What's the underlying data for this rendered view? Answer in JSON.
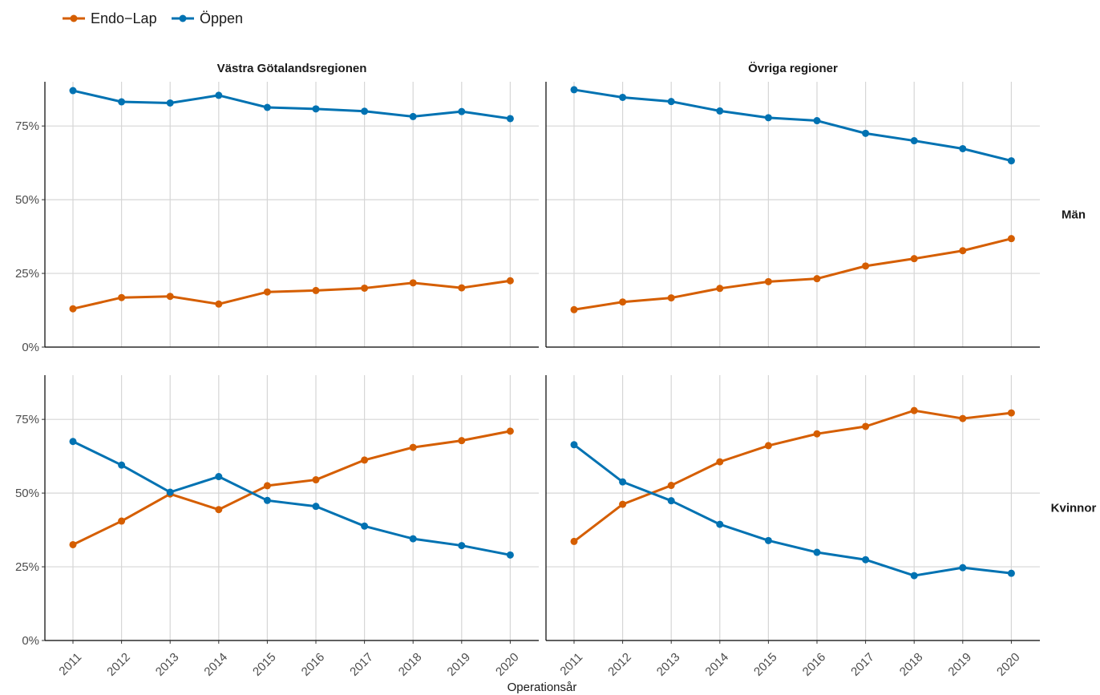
{
  "chart_data": {
    "type": "line",
    "xlabel": "Operationsår",
    "ylabel": "",
    "ylim": [
      0,
      0.9
    ],
    "yticks": [
      0,
      0.25,
      0.5,
      0.75
    ],
    "ytick_labels": [
      "0%",
      "25%",
      "50%",
      "75%"
    ],
    "x": [
      2011,
      2012,
      2013,
      2014,
      2015,
      2016,
      2017,
      2018,
      2019,
      2020
    ],
    "x_tick_labels": [
      "2011",
      "2012",
      "2013",
      "2014",
      "2015",
      "2016",
      "2017",
      "2018",
      "2019",
      "2020"
    ],
    "legend": {
      "placement": "top-left",
      "items": [
        {
          "name": "Endo−Lap",
          "color": "#D55E00"
        },
        {
          "name": "Öppen",
          "color": "#0072B2"
        }
      ]
    },
    "grid": true,
    "facet_columns": [
      "Västra Götalandsregionen",
      "Övriga regioner"
    ],
    "facet_rows": [
      "Män",
      "Kvinnor"
    ],
    "panels": [
      {
        "col": 0,
        "row": 0,
        "series": [
          {
            "name": "Endo−Lap",
            "color": "#D55E00",
            "values": [
              0.13,
              0.168,
              0.172,
              0.146,
              0.187,
              0.192,
              0.2,
              0.218,
              0.201,
              0.225
            ]
          },
          {
            "name": "Öppen",
            "color": "#0072B2",
            "values": [
              0.87,
              0.832,
              0.828,
              0.854,
              0.813,
              0.808,
              0.8,
              0.782,
              0.799,
              0.775
            ]
          }
        ]
      },
      {
        "col": 1,
        "row": 0,
        "series": [
          {
            "name": "Endo−Lap",
            "color": "#D55E00",
            "values": [
              0.127,
              0.153,
              0.167,
              0.199,
              0.222,
              0.232,
              0.275,
              0.3,
              0.327,
              0.368
            ]
          },
          {
            "name": "Öppen",
            "color": "#0072B2",
            "values": [
              0.873,
              0.847,
              0.833,
              0.801,
              0.778,
              0.768,
              0.725,
              0.7,
              0.673,
              0.632
            ]
          }
        ]
      },
      {
        "col": 0,
        "row": 1,
        "series": [
          {
            "name": "Endo−Lap",
            "color": "#D55E00",
            "values": [
              0.325,
              0.405,
              0.497,
              0.444,
              0.525,
              0.545,
              0.612,
              0.655,
              0.678,
              0.71
            ]
          },
          {
            "name": "Öppen",
            "color": "#0072B2",
            "values": [
              0.675,
              0.595,
              0.503,
              0.556,
              0.475,
              0.455,
              0.388,
              0.345,
              0.322,
              0.29
            ]
          }
        ]
      },
      {
        "col": 1,
        "row": 1,
        "series": [
          {
            "name": "Endo−Lap",
            "color": "#D55E00",
            "values": [
              0.336,
              0.462,
              0.526,
              0.606,
              0.661,
              0.701,
              0.726,
              0.78,
              0.753,
              0.772
            ]
          },
          {
            "name": "Öppen",
            "color": "#0072B2",
            "values": [
              0.664,
              0.538,
              0.474,
              0.394,
              0.339,
              0.299,
              0.274,
              0.22,
              0.247,
              0.228
            ]
          }
        ]
      }
    ]
  }
}
